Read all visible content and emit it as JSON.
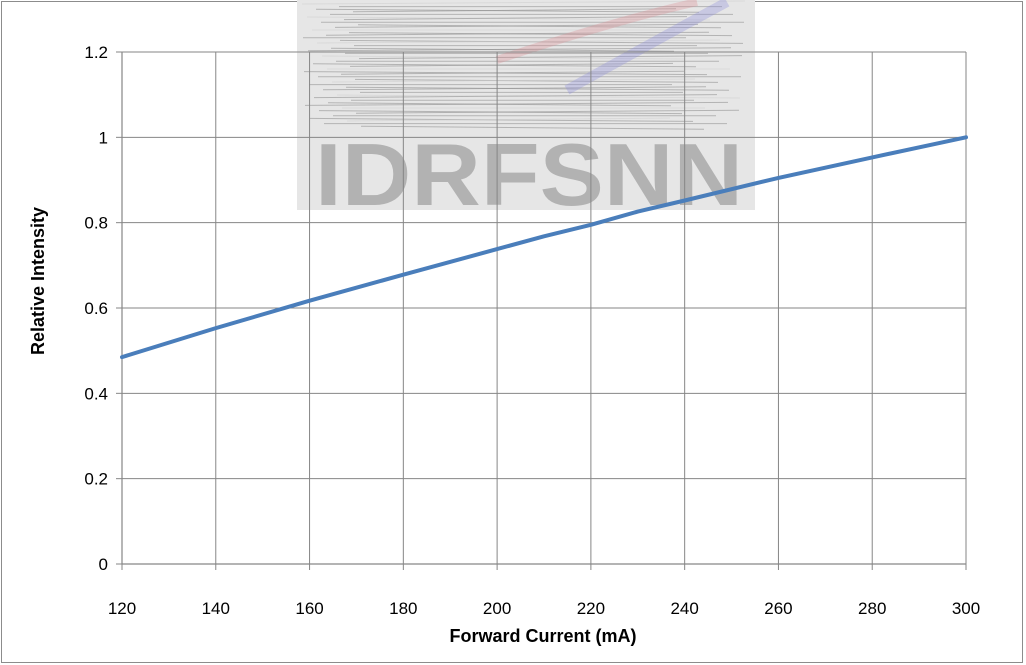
{
  "chart_data": {
    "type": "line",
    "title": "",
    "xlabel": "Forward Current (mA)",
    "ylabel": "Relative Intensity",
    "xlim": [
      120,
      300
    ],
    "ylim": [
      0,
      1.2
    ],
    "x_ticks": [
      "120",
      "140",
      "160",
      "180",
      "200",
      "220",
      "240",
      "260",
      "280",
      "300"
    ],
    "y_ticks": [
      "0",
      "0.2",
      "0.4",
      "0.6",
      "0.8",
      "1",
      "1.2"
    ],
    "grid": true,
    "legend": "none",
    "series": [
      {
        "color": "#4a7ebb",
        "x": [
          120,
          140,
          160,
          180,
          200,
          210,
          220,
          230,
          240,
          260,
          280,
          300
        ],
        "y": [
          0.485,
          0.553,
          0.617,
          0.678,
          0.738,
          0.768,
          0.795,
          0.826,
          0.852,
          0.905,
          0.953,
          1.0
        ]
      }
    ],
    "watermark": {
      "text": "IDRFSNN",
      "colors": [
        "#808080",
        "#d98f96",
        "#8f8fd9"
      ]
    }
  }
}
